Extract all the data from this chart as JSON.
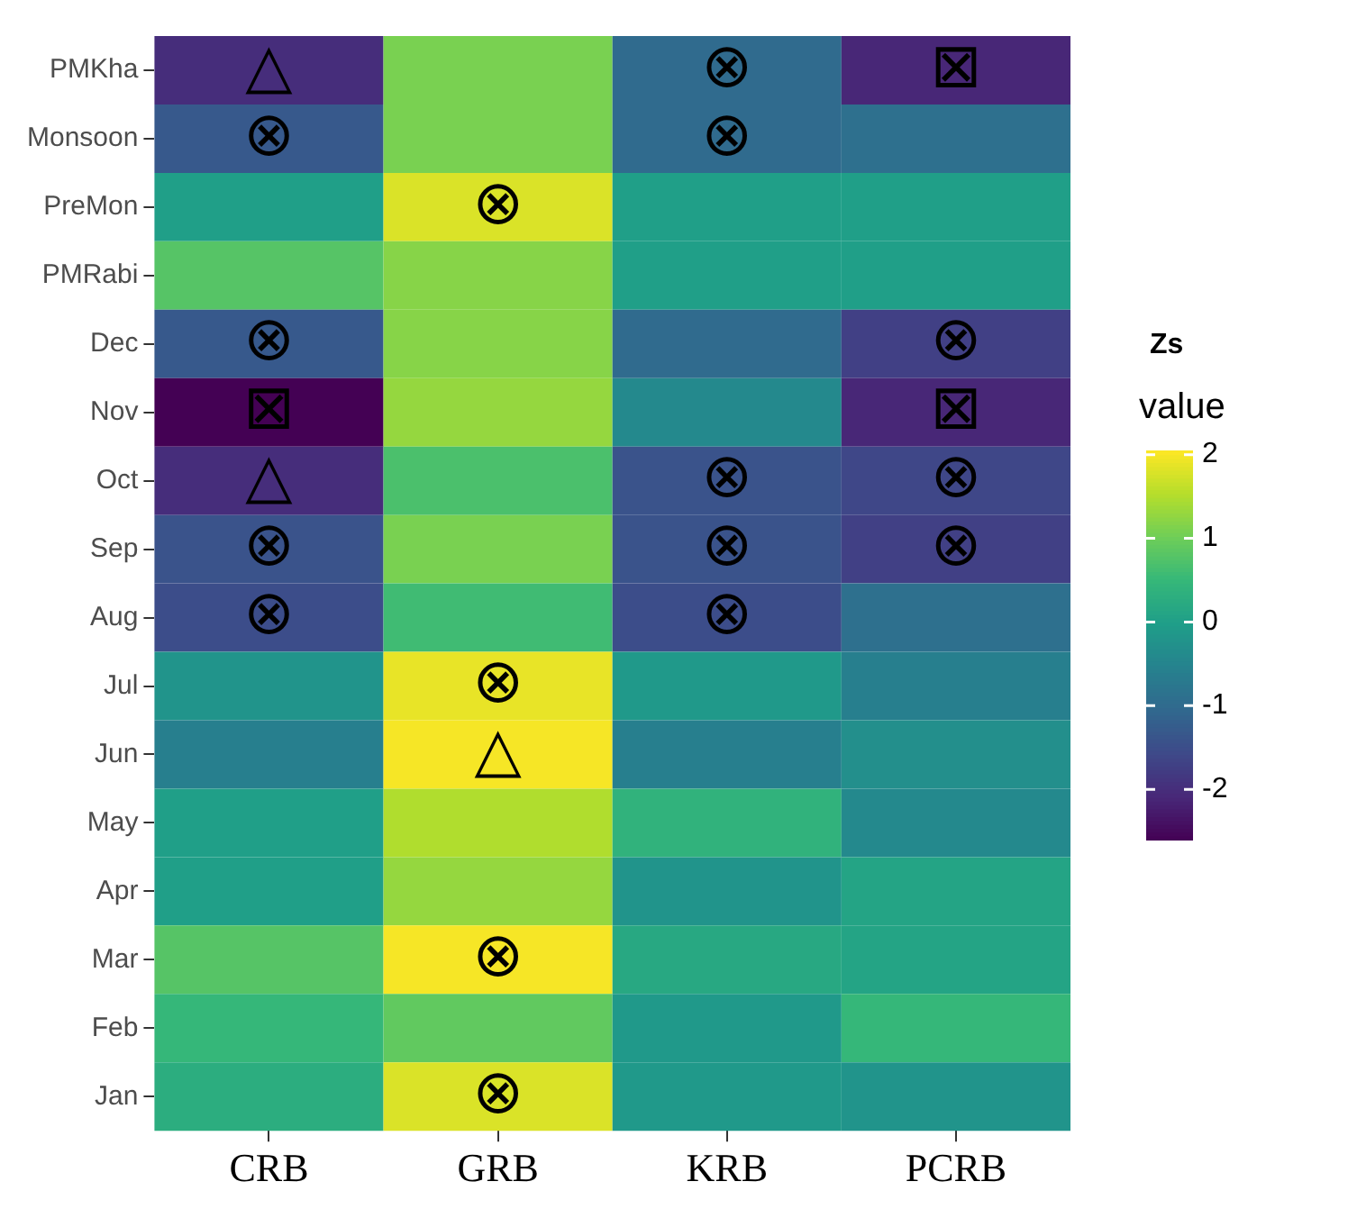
{
  "chart_data": {
    "type": "heatmap",
    "legend_title": "Zs",
    "clabel": "value",
    "categories": [
      "CRB",
      "GRB",
      "KRB",
      "PCRB"
    ],
    "y_categories": [
      "PMKha",
      "Monsoon",
      "PreMon",
      "PMRabi",
      "Dec",
      "Nov",
      "Oct",
      "Sep",
      "Aug",
      "Jul",
      "Jun",
      "May",
      "Apr",
      "Mar",
      "Feb",
      "Jan"
    ],
    "cells": [
      [
        -2.0,
        1.1,
        -1.0,
        -2.1
      ],
      [
        -1.3,
        1.1,
        -1.0,
        -0.9
      ],
      [
        0.0,
        1.8,
        0.0,
        0.0
      ],
      [
        0.8,
        1.2,
        0.0,
        0.0
      ],
      [
        -1.3,
        1.2,
        -1.0,
        -1.7
      ],
      [
        -2.6,
        1.3,
        -0.4,
        -2.1
      ],
      [
        -2.0,
        0.7,
        -1.4,
        -1.6
      ],
      [
        -1.4,
        1.1,
        -1.4,
        -1.7
      ],
      [
        -1.5,
        0.6,
        -1.5,
        -0.9
      ],
      [
        -0.2,
        1.9,
        -0.1,
        -0.6
      ],
      [
        -0.6,
        2.0,
        -0.6,
        -0.3
      ],
      [
        0.0,
        1.5,
        0.4,
        -0.4
      ],
      [
        0.0,
        1.3,
        -0.2,
        0.1
      ],
      [
        0.8,
        2.0,
        0.2,
        0.1
      ],
      [
        0.5,
        0.9,
        -0.1,
        0.5
      ],
      [
        0.3,
        1.8,
        -0.1,
        -0.2
      ]
    ],
    "cell_labels": [
      [
        "△",
        null,
        "⊗",
        "⊠"
      ],
      [
        "⊗",
        null,
        "⊗",
        null
      ],
      [
        null,
        "⊗",
        null,
        null
      ],
      [
        null,
        null,
        null,
        null
      ],
      [
        "⊗",
        null,
        null,
        "⊗"
      ],
      [
        "⊠",
        null,
        null,
        "⊠"
      ],
      [
        "△",
        null,
        "⊗",
        "⊗"
      ],
      [
        "⊗",
        null,
        "⊗",
        "⊗"
      ],
      [
        "⊗",
        null,
        "⊗",
        null
      ],
      [
        null,
        "⊗",
        null,
        null
      ],
      [
        null,
        "△",
        null,
        null
      ],
      [
        null,
        null,
        null,
        null
      ],
      [
        null,
        null,
        null,
        null
      ],
      [
        null,
        "⊗",
        null,
        null
      ],
      [
        null,
        null,
        null,
        null
      ],
      [
        null,
        "⊗",
        null,
        null
      ]
    ],
    "clim": [
      -2.6,
      2.05
    ],
    "cticks": [
      -2,
      -1,
      0,
      1,
      2
    ]
  }
}
